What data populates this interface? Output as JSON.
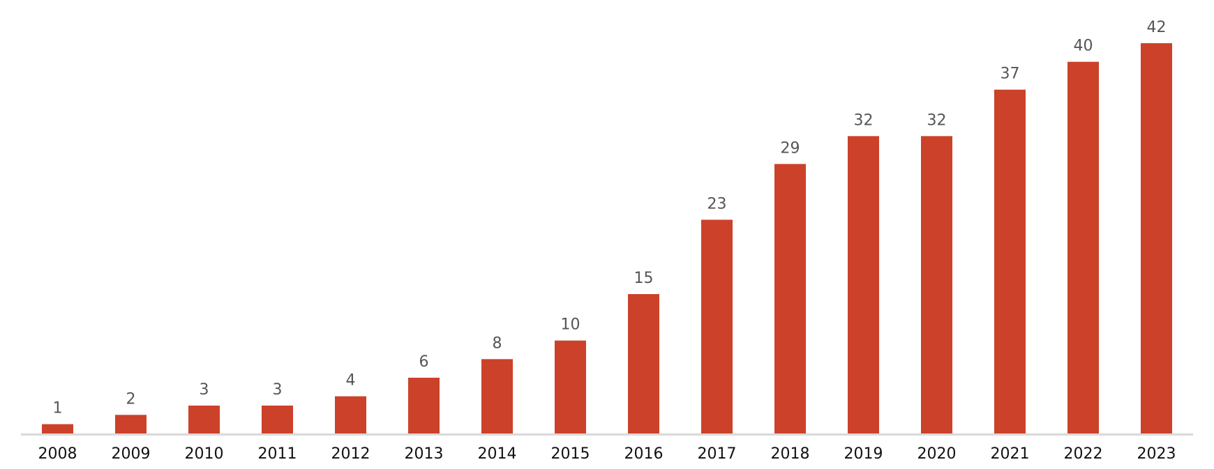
{
  "chart_data": {
    "type": "bar",
    "categories": [
      "2008",
      "2009",
      "2010",
      "2011",
      "2012",
      "2013",
      "2014",
      "2015",
      "2016",
      "2017",
      "2018",
      "2019",
      "2020",
      "2021",
      "2022",
      "2023"
    ],
    "values": [
      1,
      2,
      3,
      3,
      4,
      6,
      8,
      10,
      15,
      23,
      29,
      32,
      32,
      37,
      40,
      42
    ],
    "color": "#cc4129",
    "ylim": [
      0,
      42
    ]
  }
}
